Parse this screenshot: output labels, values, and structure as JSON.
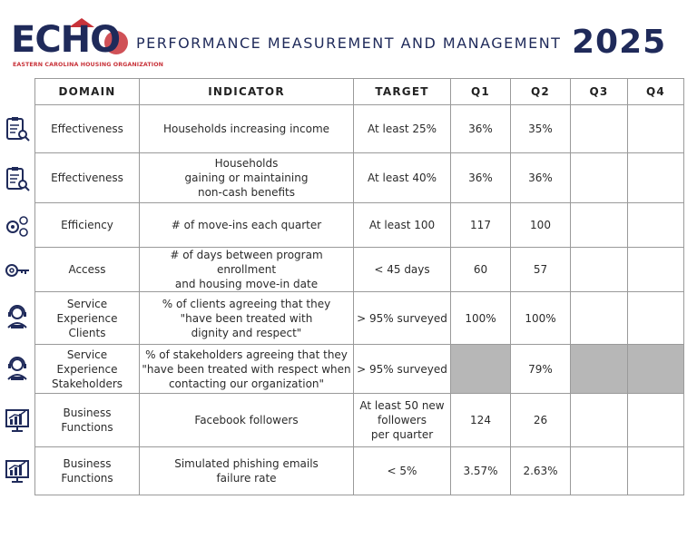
{
  "header": {
    "logo_text": "ECHO",
    "logo_subtitle": "EASTERN CAROLINA HOUSING ORGANIZATION",
    "title": "PERFORMANCE MEASUREMENT AND MANAGEMENT",
    "year": "2025"
  },
  "colors": {
    "navy": "#1f2a5a",
    "red": "#c8333a",
    "grey_cell": "#b7b7b7"
  },
  "table": {
    "headers": [
      "DOMAIN",
      "INDICATOR",
      "TARGET",
      "Q1",
      "Q2",
      "Q3",
      "Q4"
    ],
    "rows": [
      {
        "icon": "clipboard-search-icon",
        "domain": "Effectiveness",
        "indicator": "Households increasing income",
        "target": "At least 25%",
        "q1": "36%",
        "q2": "35%",
        "q3": "",
        "q4": ""
      },
      {
        "icon": "clipboard-search-icon",
        "domain": "Effectiveness",
        "indicator": "Households\ngaining or maintaining\nnon-cash benefits",
        "target": "At least 40%",
        "q1": "36%",
        "q2": "36%",
        "q3": "",
        "q4": ""
      },
      {
        "icon": "gears-icon",
        "domain": "Efficiency",
        "indicator": "# of move-ins each quarter",
        "target": "At least 100",
        "q1": "117",
        "q2": "100",
        "q3": "",
        "q4": ""
      },
      {
        "icon": "key-icon",
        "domain": "Access",
        "indicator": "# of days between program enrollment\nand housing move-in date",
        "target": "< 45 days",
        "q1": "60",
        "q2": "57",
        "q3": "",
        "q4": ""
      },
      {
        "icon": "customer-service-icon",
        "domain": "Service Experience\nClients",
        "indicator": "% of clients agreeing that they\n\"have been treated with\ndignity and respect\"",
        "target": "> 95% surveyed",
        "q1": "100%",
        "q2": "100%",
        "q3": "",
        "q4": ""
      },
      {
        "icon": "customer-service-icon",
        "domain": "Service Experience\nStakeholders",
        "indicator": "% of stakeholders agreeing that they\n\"have been treated with respect when\ncontacting our organization\"",
        "target": "> 95% surveyed",
        "q1": "",
        "q2": "79%",
        "q3": "",
        "q4": "",
        "grey": [
          "q1",
          "q3",
          "q4"
        ]
      },
      {
        "icon": "growth-chart-icon",
        "domain": "Business Functions",
        "indicator": "Facebook followers",
        "target": "At least 50 new\nfollowers\nper quarter",
        "q1": "124",
        "q2": "26",
        "q3": "",
        "q4": ""
      },
      {
        "icon": "growth-chart-icon",
        "domain": "Business Functions",
        "indicator": "Simulated phishing emails\nfailure rate",
        "target": "< 5%",
        "q1": "3.57%",
        "q2": "2.63%",
        "q3": "",
        "q4": ""
      }
    ]
  }
}
